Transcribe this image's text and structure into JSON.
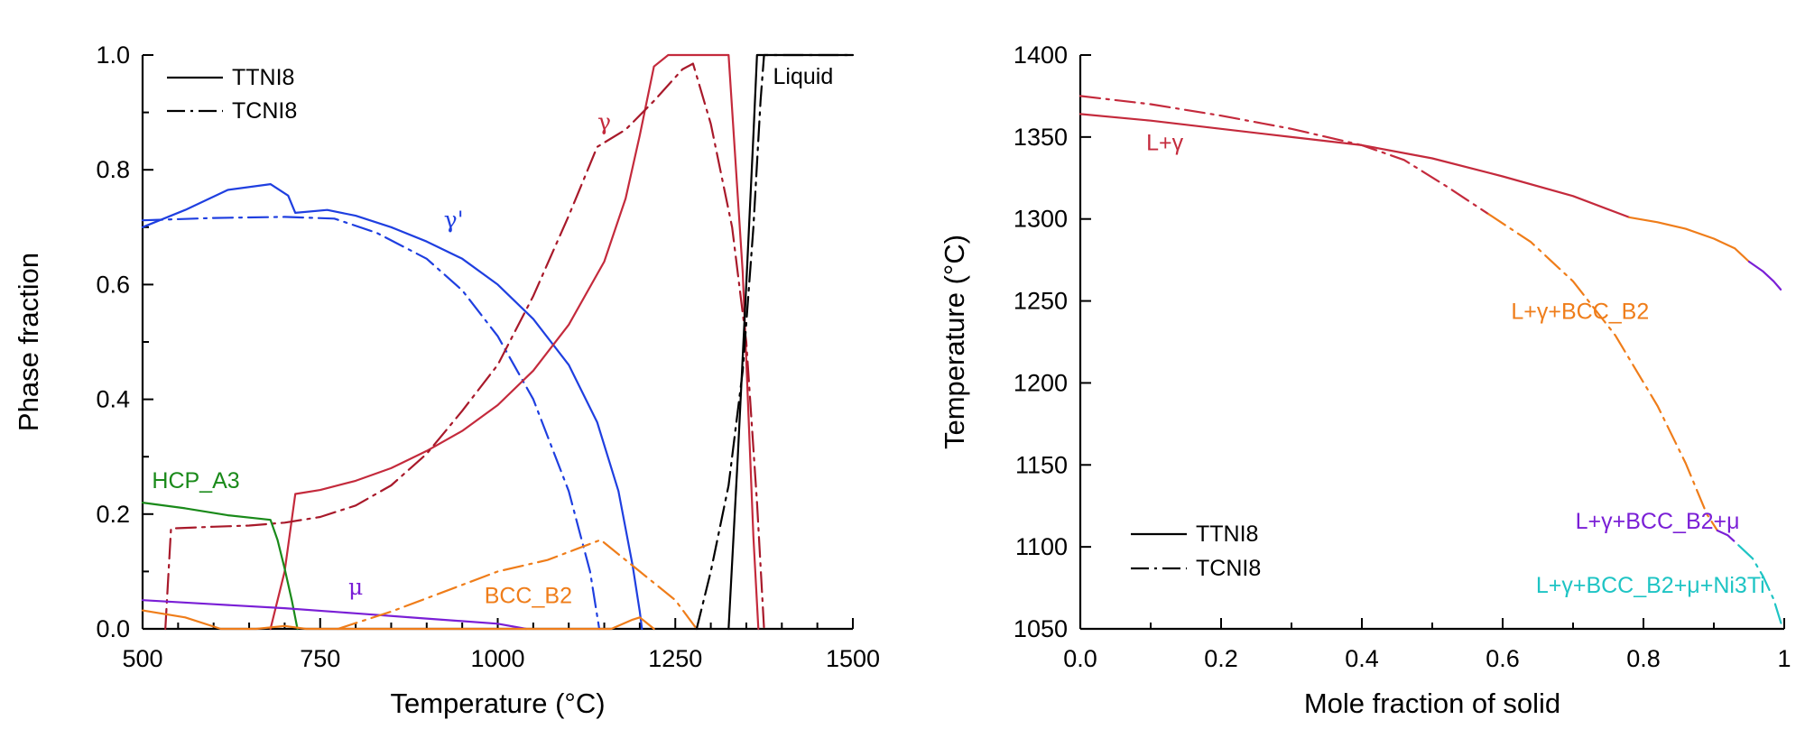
{
  "chart_data": [
    {
      "type": "line",
      "xlabel": "Temperature (°C)",
      "ylabel": "Phase fraction",
      "xlim": [
        500,
        1500
      ],
      "ylim": [
        0,
        1.0
      ],
      "xticks": [
        "500",
        "750",
        "1000",
        "1250",
        "1500"
      ],
      "yticks": [
        "0.0",
        "0.2",
        "0.4",
        "0.6",
        "0.8",
        "1.0"
      ],
      "grid": false,
      "legend_position": "top-left",
      "legend": [
        {
          "label": "TTNI8",
          "style": "solid"
        },
        {
          "label": "TCNI8",
          "style": "dash-dot"
        }
      ],
      "series": [
        {
          "name": "γ'",
          "color": "#1f3fe0",
          "style": "solid",
          "points": [
            [
              500,
              0.7
            ],
            [
              560,
              0.73
            ],
            [
              620,
              0.765
            ],
            [
              680,
              0.775
            ],
            [
              705,
              0.755
            ],
            [
              715,
              0.725
            ],
            [
              760,
              0.73
            ],
            [
              800,
              0.72
            ],
            [
              850,
              0.7
            ],
            [
              900,
              0.675
            ],
            [
              950,
              0.645
            ],
            [
              1000,
              0.6
            ],
            [
              1050,
              0.54
            ],
            [
              1100,
              0.46
            ],
            [
              1140,
              0.36
            ],
            [
              1170,
              0.24
            ],
            [
              1190,
              0.11
            ],
            [
              1200,
              0.03
            ],
            [
              1203,
              0.0
            ]
          ]
        },
        {
          "name": "γ'",
          "color": "#1f3fe0",
          "style": "dashdot",
          "points": [
            [
              500,
              0.712
            ],
            [
              600,
              0.716
            ],
            [
              700,
              0.718
            ],
            [
              770,
              0.715
            ],
            [
              830,
              0.69
            ],
            [
              900,
              0.645
            ],
            [
              950,
              0.59
            ],
            [
              1000,
              0.51
            ],
            [
              1050,
              0.4
            ],
            [
              1100,
              0.24
            ],
            [
              1130,
              0.1
            ],
            [
              1143,
              0.0
            ]
          ]
        },
        {
          "name": "γ",
          "color": "#c42a3c",
          "style": "solid",
          "points": [
            [
              680,
              0.0
            ],
            [
              700,
              0.1
            ],
            [
              715,
              0.235
            ],
            [
              750,
              0.242
            ],
            [
              800,
              0.258
            ],
            [
              850,
              0.28
            ],
            [
              900,
              0.31
            ],
            [
              950,
              0.345
            ],
            [
              1000,
              0.39
            ],
            [
              1050,
              0.45
            ],
            [
              1100,
              0.53
            ],
            [
              1150,
              0.64
            ],
            [
              1180,
              0.75
            ],
            [
              1200,
              0.86
            ],
            [
              1220,
              0.98
            ],
            [
              1240,
              1.0
            ],
            [
              1300,
              1.0
            ],
            [
              1325,
              1.0
            ],
            [
              1345,
              0.62
            ],
            [
              1360,
              0.16
            ],
            [
              1367,
              0.0
            ]
          ]
        },
        {
          "name": "γ",
          "color": "#a8192a",
          "style": "dashdot",
          "points": [
            [
              532,
              0.0
            ],
            [
              540,
              0.175
            ],
            [
              600,
              0.178
            ],
            [
              650,
              0.18
            ],
            [
              700,
              0.185
            ],
            [
              750,
              0.195
            ],
            [
              800,
              0.215
            ],
            [
              850,
              0.25
            ],
            [
              900,
              0.305
            ],
            [
              950,
              0.38
            ],
            [
              1000,
              0.46
            ],
            [
              1050,
              0.58
            ],
            [
              1100,
              0.72
            ],
            [
              1140,
              0.84
            ],
            [
              1180,
              0.87
            ],
            [
              1220,
              0.92
            ],
            [
              1260,
              0.975
            ],
            [
              1275,
              0.985
            ],
            [
              1300,
              0.88
            ],
            [
              1330,
              0.7
            ],
            [
              1350,
              0.5
            ],
            [
              1365,
              0.22
            ],
            [
              1375,
              0.0
            ]
          ]
        },
        {
          "name": "HCP_A3",
          "color": "#1a8a1a",
          "style": "solid",
          "points": [
            [
              500,
              0.22
            ],
            [
              560,
              0.21
            ],
            [
              620,
              0.198
            ],
            [
              680,
              0.19
            ],
            [
              690,
              0.155
            ],
            [
              700,
              0.105
            ],
            [
              710,
              0.05
            ],
            [
              718,
              0.0
            ]
          ]
        },
        {
          "name": "μ",
          "color": "#7a1fd6",
          "style": "solid",
          "points": [
            [
              500,
              0.05
            ],
            [
              600,
              0.043
            ],
            [
              700,
              0.036
            ],
            [
              800,
              0.027
            ],
            [
              900,
              0.018
            ],
            [
              1000,
              0.009
            ],
            [
              1040,
              0.0
            ]
          ]
        },
        {
          "name": "BCC_B2",
          "color": "#ef7d1a",
          "style": "solid",
          "points": [
            [
              500,
              0.032
            ],
            [
              560,
              0.02
            ],
            [
              610,
              0.0
            ],
            [
              660,
              0.0
            ],
            [
              700,
              0.005
            ],
            [
              730,
              0.0
            ],
            [
              1160,
              0.0
            ],
            [
              1190,
              0.016
            ],
            [
              1200,
              0.02
            ],
            [
              1210,
              0.01
            ],
            [
              1220,
              0.0
            ]
          ]
        },
        {
          "name": "BCC_B2",
          "color": "#ef7d1a",
          "style": "dashdot",
          "points": [
            [
              775,
              0.0
            ],
            [
              850,
              0.03
            ],
            [
              925,
              0.065
            ],
            [
              1000,
              0.1
            ],
            [
              1070,
              0.12
            ],
            [
              1145,
              0.155
            ],
            [
              1200,
              0.1
            ],
            [
              1250,
              0.05
            ],
            [
              1280,
              0.0
            ]
          ]
        },
        {
          "name": "Liquid",
          "color": "#000000",
          "style": "solid",
          "points": [
            [
              1325,
              0.0
            ],
            [
              1338,
              0.3
            ],
            [
              1350,
              0.6
            ],
            [
              1360,
              0.86
            ],
            [
              1365,
              1.0
            ],
            [
              1500,
              1.0
            ]
          ]
        },
        {
          "name": "Liquid",
          "color": "#000000",
          "style": "dashdot",
          "points": [
            [
              1280,
              0.0
            ],
            [
              1300,
              0.1
            ],
            [
              1325,
              0.25
            ],
            [
              1345,
              0.45
            ],
            [
              1360,
              0.7
            ],
            [
              1370,
              0.92
            ],
            [
              1375,
              1.0
            ],
            [
              1500,
              1.0
            ]
          ]
        }
      ],
      "annotations": [
        {
          "text": "Liquid",
          "color": "#000000",
          "at": [
            1430,
            0.95
          ]
        },
        {
          "text": "γ'",
          "color": "#1f3fe0",
          "at": [
            938,
            0.7
          ],
          "greek": true
        },
        {
          "text": "γ",
          "color": "#c42a3c",
          "at": [
            1150,
            0.87
          ],
          "greek": true
        },
        {
          "text": "HCP_A3",
          "color": "#1a8a1a",
          "at": [
            575,
            0.245
          ]
        },
        {
          "text": "μ",
          "color": "#7a1fd6",
          "at": [
            800,
            0.06
          ],
          "greek": true
        },
        {
          "text": "BCC_B2",
          "color": "#ef7d1a",
          "at": [
            1043,
            0.045
          ]
        }
      ]
    },
    {
      "type": "line",
      "xlabel": "Mole fraction of solid",
      "ylabel": "Temperature (°C)",
      "xlim": [
        0,
        1
      ],
      "ylim": [
        1050,
        1400
      ],
      "xticks": [
        "0.0",
        "0.2",
        "0.4",
        "0.6",
        "0.8",
        "1"
      ],
      "yticks": [
        "1050",
        "1100",
        "1150",
        "1200",
        "1250",
        "1300",
        "1350",
        "1400"
      ],
      "grid": false,
      "legend_position": "bottom-left",
      "legend": [
        {
          "label": "TTNI8",
          "style": "solid"
        },
        {
          "label": "TCNI8",
          "style": "dash-dot"
        }
      ],
      "series": [
        {
          "name": "L+γ",
          "color": "#c42a3c",
          "style": "solid",
          "points": [
            [
              0,
              1364
            ],
            [
              0.1,
              1360
            ],
            [
              0.2,
              1355
            ],
            [
              0.3,
              1350
            ],
            [
              0.4,
              1345
            ],
            [
              0.5,
              1337
            ],
            [
              0.6,
              1326
            ],
            [
              0.7,
              1314
            ],
            [
              0.78,
              1301
            ]
          ]
        },
        {
          "name": "L+γ+BCC_B2",
          "color": "#ef7d1a",
          "style": "solid",
          "points": [
            [
              0.78,
              1301
            ],
            [
              0.82,
              1298
            ],
            [
              0.86,
              1294
            ],
            [
              0.9,
              1288
            ],
            [
              0.93,
              1282
            ],
            [
              0.95,
              1274
            ]
          ]
        },
        {
          "name": "L+γ+BCC_B2+μ",
          "color": "#7a1fd6",
          "style": "solid",
          "points": [
            [
              0.95,
              1274
            ],
            [
              0.97,
              1268
            ],
            [
              0.985,
              1262
            ],
            [
              0.995,
              1257
            ]
          ]
        },
        {
          "name": "L+γ",
          "color": "#c42a3c",
          "style": "dashdot",
          "points": [
            [
              0,
              1375
            ],
            [
              0.1,
              1370
            ],
            [
              0.2,
              1363
            ],
            [
              0.3,
              1355
            ],
            [
              0.4,
              1345
            ],
            [
              0.46,
              1336
            ],
            [
              0.52,
              1320
            ],
            [
              0.58,
              1303
            ]
          ]
        },
        {
          "name": "L+γ+BCC_B2",
          "color": "#ef7d1a",
          "style": "dashdot",
          "points": [
            [
              0.58,
              1303
            ],
            [
              0.64,
              1286
            ],
            [
              0.7,
              1262
            ],
            [
              0.76,
              1229
            ],
            [
              0.82,
              1186
            ],
            [
              0.86,
              1151
            ],
            [
              0.89,
              1120
            ],
            [
              0.905,
              1110
            ]
          ]
        },
        {
          "name": "L+γ+BCC_B2+μ",
          "color": "#7a1fd6",
          "style": "dashdot",
          "points": [
            [
              0.905,
              1110
            ],
            [
              0.92,
              1107
            ],
            [
              0.935,
              1101
            ]
          ]
        },
        {
          "name": "L+γ+BCC_B2+μ+Ni3Ti",
          "color": "#1ec4c4",
          "style": "dashdot",
          "points": [
            [
              0.935,
              1101
            ],
            [
              0.955,
              1093
            ],
            [
              0.97,
              1082
            ],
            [
              0.985,
              1068
            ],
            [
              0.998,
              1050
            ]
          ]
        }
      ],
      "annotations": [
        {
          "text": "L+γ",
          "color": "#c42a3c",
          "at": [
            0.12,
            1342
          ]
        },
        {
          "text": "L+γ+BCC_B2",
          "color": "#ef7d1a",
          "at": [
            0.71,
            1239
          ]
        },
        {
          "text": "L+γ+BCC_B2+μ",
          "color": "#7a1fd6",
          "at": [
            0.82,
            1111
          ]
        },
        {
          "text": "L+γ+BCC_B2+μ+Ni3Ti",
          "color": "#1ec4c4",
          "at": [
            0.81,
            1072
          ]
        }
      ]
    }
  ]
}
